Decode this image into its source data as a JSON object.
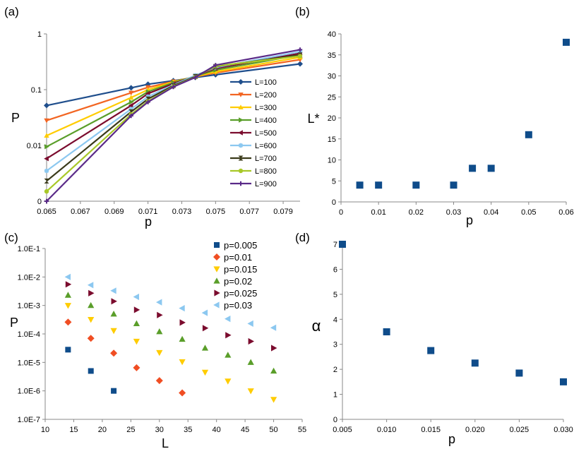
{
  "panel_labels": {
    "a": "(a)",
    "b": "(b)",
    "c": "(c)",
    "d": "(d)"
  },
  "chart_data": [
    {
      "id": "a",
      "type": "line",
      "xlabel": "p",
      "ylabel": "P",
      "yscale": "log",
      "xlim": [
        0.065,
        0.08
      ],
      "ylim": [
        0.001,
        1
      ],
      "xticks": [
        0.065,
        0.067,
        0.069,
        0.071,
        0.073,
        0.075,
        0.077,
        0.079
      ],
      "xtick_labels": [
        "0.065",
        "0.067",
        "0.069",
        "0.071",
        "0.073",
        "0.075",
        "0.077",
        "0.079"
      ],
      "yticks": [
        0.001,
        0.01,
        0.1,
        1
      ],
      "ytick_labels": [
        "0",
        "0.01",
        "0.1",
        "1"
      ],
      "grid": false,
      "legend": "middle-right",
      "x": [
        0.065,
        0.07,
        0.071,
        0.0725,
        0.0738,
        0.075,
        0.08
      ],
      "series": [
        {
          "name": "L=100",
          "color": "#1f4e8c",
          "marker": "diamond",
          "values": [
            0.052,
            0.108,
            0.125,
            0.145,
            0.165,
            0.185,
            0.29
          ]
        },
        {
          "name": "L=200",
          "color": "#f26522",
          "marker": "triangle-down",
          "values": [
            0.028,
            0.088,
            0.11,
            0.14,
            0.17,
            0.2,
            0.345
          ]
        },
        {
          "name": "L=300",
          "color": "#ffcc00",
          "marker": "triangle-up",
          "values": [
            0.015,
            0.072,
            0.1,
            0.138,
            0.172,
            0.21,
            0.38
          ]
        },
        {
          "name": "L=400",
          "color": "#5a9e2a",
          "marker": "triangle-right",
          "values": [
            0.0095,
            0.06,
            0.092,
            0.134,
            0.174,
            0.225,
            0.42
          ]
        },
        {
          "name": "L=500",
          "color": "#7b0c2e",
          "marker": "triangle-left",
          "values": [
            0.0058,
            0.052,
            0.085,
            0.128,
            0.176,
            0.24,
            0.45
          ]
        },
        {
          "name": "L=600",
          "color": "#8cc8f0",
          "marker": "star",
          "values": [
            0.0035,
            0.045,
            0.075,
            0.122,
            0.18,
            0.25,
            0.48
          ]
        },
        {
          "name": "L=700",
          "color": "#3a3a1a",
          "marker": "hourglass",
          "values": [
            0.0023,
            0.04,
            0.068,
            0.118,
            0.172,
            0.26,
            0.42
          ]
        },
        {
          "name": "L=800",
          "color": "#a8c828",
          "marker": "circle",
          "values": [
            0.0015,
            0.036,
            0.062,
            0.114,
            0.168,
            0.265,
            0.4
          ]
        },
        {
          "name": "L=900",
          "color": "#5a2a88",
          "marker": "plus",
          "values": [
            0.001,
            0.034,
            0.06,
            0.112,
            0.166,
            0.275,
            0.52
          ]
        }
      ]
    },
    {
      "id": "b",
      "type": "scatter",
      "xlabel": "p",
      "ylabel": "L*",
      "xlim": [
        0,
        0.06
      ],
      "ylim": [
        0,
        40
      ],
      "xticks": [
        0,
        0.01,
        0.02,
        0.03,
        0.04,
        0.05,
        0.06
      ],
      "xtick_labels": [
        "0",
        "0.01",
        "0.02",
        "0.03",
        "0.04",
        "0.05",
        "0.06"
      ],
      "yticks": [
        0,
        5,
        10,
        15,
        20,
        25,
        30,
        35,
        40
      ],
      "ytick_labels": [
        "0",
        "5",
        "10",
        "15",
        "20",
        "25",
        "30",
        "35",
        "40"
      ],
      "grid": false,
      "color": "#0f4c8a",
      "x": [
        0.005,
        0.01,
        0.02,
        0.03,
        0.035,
        0.04,
        0.05,
        0.06
      ],
      "y": [
        4,
        4,
        4,
        4,
        8,
        8,
        16,
        38
      ]
    },
    {
      "id": "c",
      "type": "scatter",
      "xlabel": "L",
      "ylabel": "P",
      "yscale": "log",
      "xlim": [
        10,
        55
      ],
      "ylim": [
        1e-07,
        0.1
      ],
      "xticks": [
        10,
        15,
        20,
        25,
        30,
        35,
        40,
        45,
        50,
        55
      ],
      "xtick_labels": [
        "10",
        "15",
        "20",
        "25",
        "30",
        "35",
        "40",
        "45",
        "50",
        "55"
      ],
      "yticks": [
        1e-07,
        1e-06,
        1e-05,
        0.0001,
        0.001,
        0.01,
        0.1
      ],
      "ytick_labels": [
        "1.0E-7",
        "1.0E-6",
        "1.0E-5",
        "1.0E-4",
        "1.0E-3",
        "1.0E-2",
        "1.0E-1"
      ],
      "grid": false,
      "legend": "top-right",
      "series": [
        {
          "name": "p=0.005",
          "color": "#0f4c8a",
          "marker": "square",
          "x": [
            14,
            18,
            22
          ],
          "y": [
            2.8e-05,
            5e-06,
            1e-06
          ]
        },
        {
          "name": "p=0.01",
          "color": "#f04e23",
          "marker": "diamond",
          "x": [
            14,
            18,
            22,
            26,
            30,
            34
          ],
          "y": [
            0.00026,
            7e-05,
            2.1e-05,
            6.5e-06,
            2.3e-06,
            8.5e-07
          ]
        },
        {
          "name": "p=0.015",
          "color": "#ffcc00",
          "marker": "triangle-down",
          "x": [
            14,
            18,
            22,
            26,
            30,
            34,
            38,
            42,
            46,
            50
          ],
          "y": [
            0.001,
            0.00032,
            0.00013,
            5.5e-05,
            2.2e-05,
            1.05e-05,
            4.5e-06,
            2.2e-06,
            1e-06,
            5e-07
          ]
        },
        {
          "name": "p=0.02",
          "color": "#5a9e2a",
          "marker": "triangle-up",
          "x": [
            14,
            18,
            22,
            26,
            30,
            34,
            38,
            42,
            46,
            50
          ],
          "y": [
            0.0023,
            0.001,
            0.0005,
            0.00023,
            0.00012,
            6.5e-05,
            3.2e-05,
            1.8e-05,
            1e-05,
            5e-06
          ]
        },
        {
          "name": "p=0.025",
          "color": "#7b0c2e",
          "marker": "triangle-right",
          "x": [
            14,
            18,
            22,
            26,
            30,
            34,
            38,
            42,
            46,
            50
          ],
          "y": [
            0.0055,
            0.0027,
            0.0014,
            0.0007,
            0.00046,
            0.00025,
            0.00016,
            9e-05,
            5.5e-05,
            3.2e-05
          ]
        },
        {
          "name": "p=0.03",
          "color": "#8cc8f0",
          "marker": "triangle-left",
          "x": [
            14,
            18,
            22,
            26,
            30,
            34,
            38,
            42,
            46,
            50
          ],
          "y": [
            0.01,
            0.0052,
            0.0033,
            0.002,
            0.0013,
            0.0008,
            0.00055,
            0.00034,
            0.00023,
            0.000165
          ]
        }
      ]
    },
    {
      "id": "d",
      "type": "scatter",
      "xlabel": "p",
      "ylabel": "α",
      "xlim": [
        0.005,
        0.03
      ],
      "ylim": [
        0,
        7
      ],
      "xticks": [
        0.005,
        0.01,
        0.015,
        0.02,
        0.025,
        0.03
      ],
      "xtick_labels": [
        "0.005",
        "0.010",
        "0.015",
        "0.020",
        "0.025",
        "0.030"
      ],
      "yticks": [
        0,
        1,
        2,
        3,
        4,
        5,
        6,
        7
      ],
      "ytick_labels": [
        "0",
        "1",
        "2",
        "3",
        "4",
        "5",
        "6",
        "7"
      ],
      "grid": false,
      "color": "#0f4c8a",
      "x": [
        0.005,
        0.01,
        0.015,
        0.02,
        0.025,
        0.03
      ],
      "y": [
        7,
        3.5,
        2.75,
        2.25,
        1.85,
        1.5
      ]
    }
  ]
}
